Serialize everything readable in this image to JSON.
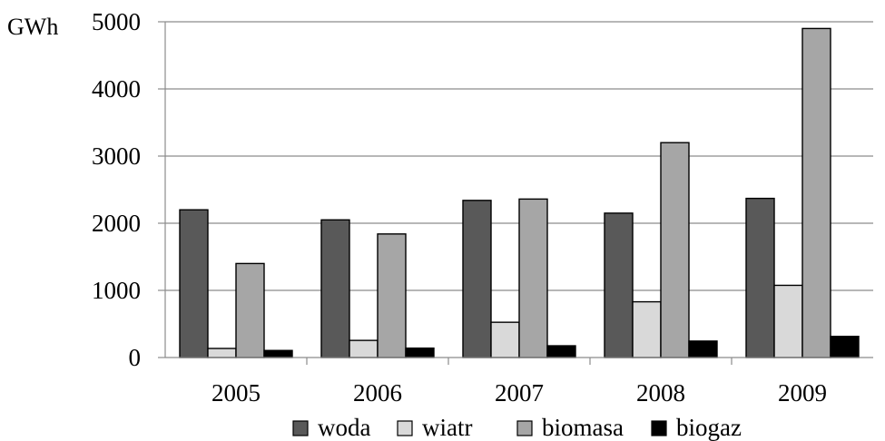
{
  "chart_data": {
    "type": "bar",
    "title": "",
    "xlabel": "",
    "ylabel": "GWh",
    "categories": [
      "2005",
      "2006",
      "2007",
      "2008",
      "2009"
    ],
    "ylim": [
      0,
      5000
    ],
    "yticks": [
      "0",
      "1000",
      "2000",
      "3000",
      "4000",
      "5000"
    ],
    "grid": true,
    "legend_position": "bottom",
    "series": [
      {
        "name": "woda",
        "values": [
          2200,
          2050,
          2340,
          2150,
          2370
        ],
        "color": "#595959"
      },
      {
        "name": "wiatr",
        "values": [
          135,
          255,
          525,
          830,
          1075
        ],
        "color": "#d9d9d9"
      },
      {
        "name": "biomasa",
        "values": [
          1400,
          1840,
          2360,
          3200,
          4900
        ],
        "color": "#a6a6a6"
      },
      {
        "name": "biogaz",
        "values": [
          105,
          140,
          175,
          245,
          315
        ],
        "color": "#000000"
      }
    ]
  }
}
